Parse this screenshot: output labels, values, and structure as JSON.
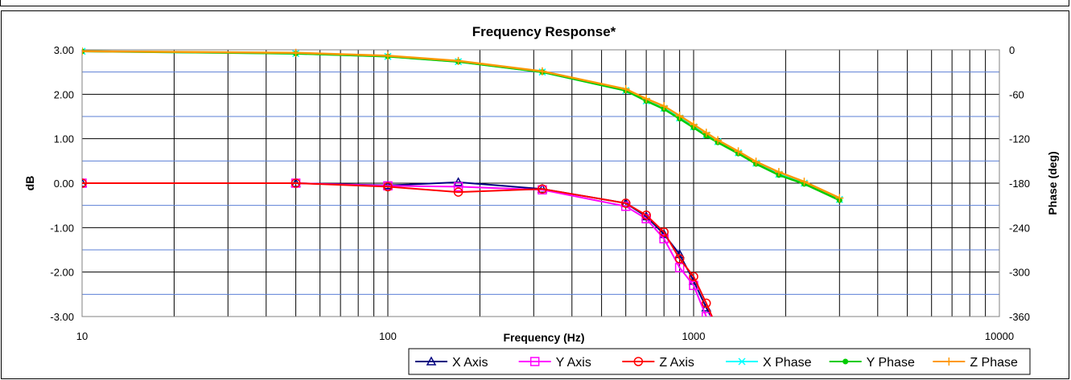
{
  "chart_data": {
    "type": "line",
    "title": "Frequency Response*",
    "xlabel": "Frequency (Hz)",
    "ylabel": "dB",
    "y2label": "Phase (deg)",
    "xscale": "log",
    "xlim": [
      10,
      10000
    ],
    "ylim": [
      -3,
      3
    ],
    "y2lim": [
      -360,
      0
    ],
    "x_ticks": [
      "10",
      "100",
      "1000",
      "10000"
    ],
    "y_ticks": [
      "3.00",
      "2.00",
      "1.00",
      "0.00",
      "-1.00",
      "-2.00",
      "-3.00"
    ],
    "y2_ticks": [
      "0",
      "-60",
      "-120",
      "-180",
      "-240",
      "-300",
      "-360"
    ],
    "grid": true,
    "legend_position": "bottom-right",
    "series": [
      {
        "name": "X Axis",
        "axis": "left",
        "color": "#000080",
        "marker": "triangle",
        "x": [
          10,
          50,
          100,
          170,
          320,
          600,
          700,
          800,
          900,
          1000,
          1100,
          1200
        ],
        "y": [
          0.0,
          0.0,
          -0.05,
          0.02,
          -0.13,
          -0.45,
          -0.75,
          -1.15,
          -1.6,
          -2.2,
          -2.8,
          -3.3
        ]
      },
      {
        "name": "Y Axis",
        "axis": "left",
        "color": "#ff00ff",
        "marker": "square",
        "x": [
          10,
          50,
          100,
          170,
          320,
          600,
          700,
          800,
          900,
          1000,
          1100,
          1200
        ],
        "y": [
          0.0,
          0.0,
          -0.06,
          -0.08,
          -0.15,
          -0.52,
          -0.8,
          -1.25,
          -1.9,
          -2.3,
          -3.0,
          -3.5
        ]
      },
      {
        "name": "Z Axis",
        "axis": "left",
        "color": "#ff0000",
        "marker": "circle",
        "x": [
          10,
          50,
          100,
          170,
          320,
          600,
          700,
          800,
          900,
          1000,
          1100,
          1200
        ],
        "y": [
          0.0,
          0.0,
          -0.08,
          -0.2,
          -0.13,
          -0.45,
          -0.72,
          -1.1,
          -1.7,
          -2.1,
          -2.7,
          -3.3
        ]
      },
      {
        "name": "X Phase",
        "axis": "right",
        "color": "#00ffff",
        "marker": "x",
        "x": [
          10,
          50,
          100,
          170,
          320,
          600,
          700,
          800,
          900,
          1000,
          1100,
          1200,
          1400,
          1600,
          1900,
          2300,
          3000
        ],
        "y": [
          -2,
          -5,
          -9,
          -16,
          -30,
          -55,
          -69,
          -79,
          -92,
          -104,
          -115,
          -124,
          -139,
          -153,
          -168,
          -180,
          -202
        ]
      },
      {
        "name": "Y Phase",
        "axis": "right",
        "color": "#00cc00",
        "marker": "dot",
        "x": [
          10,
          50,
          100,
          170,
          320,
          600,
          700,
          800,
          900,
          1000,
          1100,
          1200,
          1400,
          1600,
          1900,
          2300,
          3000
        ],
        "y": [
          -2,
          -5,
          -9,
          -16,
          -30,
          -55,
          -69,
          -80,
          -93,
          -105,
          -116,
          -125,
          -140,
          -154,
          -169,
          -181,
          -203
        ]
      },
      {
        "name": "Z Phase",
        "axis": "right",
        "color": "#ff9900",
        "marker": "plus",
        "x": [
          10,
          50,
          100,
          170,
          320,
          600,
          700,
          800,
          900,
          1000,
          1100,
          1200,
          1400,
          1600,
          1900,
          2300,
          3000
        ],
        "y": [
          -2,
          -4,
          -8,
          -15,
          -29,
          -53,
          -66,
          -76,
          -89,
          -101,
          -112,
          -122,
          -137,
          -151,
          -165,
          -178,
          -200
        ]
      }
    ]
  }
}
